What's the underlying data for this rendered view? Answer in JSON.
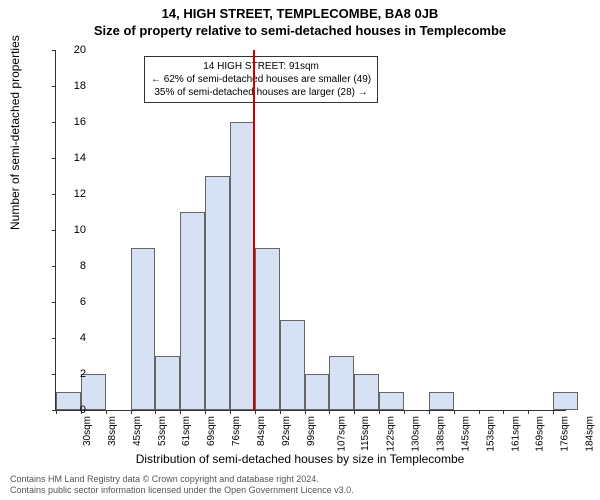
{
  "title_line1": "14, HIGH STREET, TEMPLECOMBE, BA8 0JB",
  "title_line2": "Size of property relative to semi-detached houses in Templecombe",
  "ylabel": "Number of semi-detached properties",
  "xlabel": "Distribution of semi-detached houses by size in Templecombe",
  "footer_line1": "Contains HM Land Registry data © Crown copyright and database right 2024.",
  "footer_line2": "Contains public sector information licensed under the Open Government Licence v3.0.",
  "annotation": {
    "line1": "14 HIGH STREET: 91sqm",
    "line2": "← 62% of semi-detached houses are smaller (49)",
    "line3": "35% of semi-detached houses are larger (28) →"
  },
  "chart": {
    "type": "histogram",
    "ylim": [
      0,
      20
    ],
    "ytick_step": 2,
    "x_min": 30,
    "x_max": 188,
    "x_tick_start": 30,
    "x_tick_step": 7.7,
    "x_tick_count": 21,
    "bar_fill": "#d6e2f3",
    "bar_border": "#666666",
    "marker_color": "#cc0000",
    "marker_x": 91,
    "background_color": "#ffffff",
    "bars": [
      {
        "x": 30,
        "h": 1
      },
      {
        "x": 37.7,
        "h": 2
      },
      {
        "x": 45.4,
        "h": 0
      },
      {
        "x": 53.1,
        "h": 9
      },
      {
        "x": 60.8,
        "h": 3
      },
      {
        "x": 68.5,
        "h": 11
      },
      {
        "x": 76.2,
        "h": 13
      },
      {
        "x": 83.9,
        "h": 16
      },
      {
        "x": 91.6,
        "h": 9
      },
      {
        "x": 99.3,
        "h": 5
      },
      {
        "x": 107.0,
        "h": 2
      },
      {
        "x": 114.7,
        "h": 3
      },
      {
        "x": 122.4,
        "h": 2
      },
      {
        "x": 130.1,
        "h": 1
      },
      {
        "x": 137.8,
        "h": 0
      },
      {
        "x": 145.5,
        "h": 1
      },
      {
        "x": 153.2,
        "h": 0
      },
      {
        "x": 160.9,
        "h": 0
      },
      {
        "x": 168.6,
        "h": 0
      },
      {
        "x": 176.3,
        "h": 0
      },
      {
        "x": 184.0,
        "h": 1
      }
    ],
    "x_tick_labels": [
      "30sqm",
      "38sqm",
      "45sqm",
      "53sqm",
      "61sqm",
      "69sqm",
      "76sqm",
      "84sqm",
      "92sqm",
      "99sqm",
      "107sqm",
      "115sqm",
      "122sqm",
      "130sqm",
      "138sqm",
      "145sqm",
      "153sqm",
      "161sqm",
      "169sqm",
      "176sqm",
      "184sqm"
    ]
  }
}
